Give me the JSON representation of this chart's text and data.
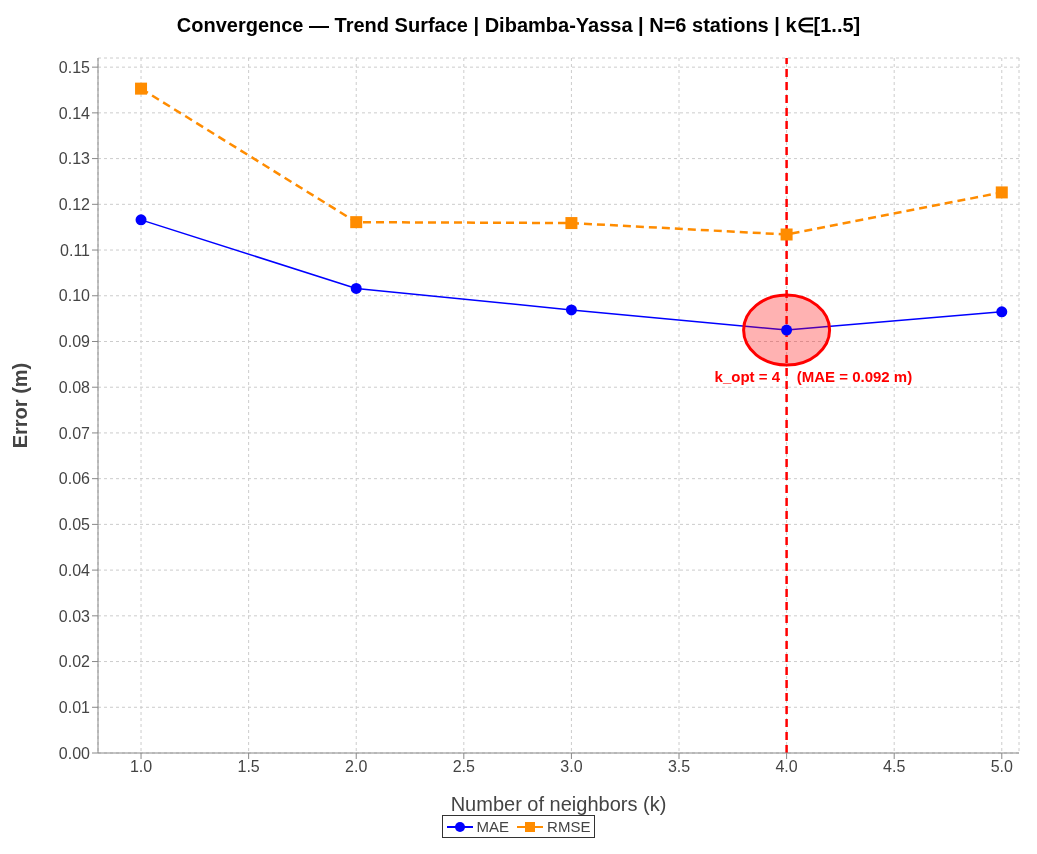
{
  "chart_data": {
    "type": "line",
    "title": "Convergence — Trend Surface | Dibamba-Yassa | N=6 stations | k∈[1..5]",
    "xlabel": "Number of neighbors (k)",
    "ylabel": "Error (m)",
    "x": [
      1,
      2,
      3,
      4,
      5
    ],
    "series": [
      {
        "name": "MAE",
        "color": "#0000ff",
        "values": [
          0.1166,
          0.1016,
          0.0969,
          0.0925,
          0.0965
        ],
        "marker": "circle",
        "line_style": "solid"
      },
      {
        "name": "RMSE",
        "color": "#ff8c00",
        "values": [
          0.1453,
          0.1161,
          0.1159,
          0.1134,
          0.1226
        ],
        "marker": "square",
        "line_style": "dashed"
      }
    ],
    "xlim": [
      0.8,
      5.08
    ],
    "ylim": [
      0,
      0.152
    ],
    "xticks": [
      {
        "value": 1,
        "label": "1.0"
      },
      {
        "value": 1.5,
        "label": "1.5"
      },
      {
        "value": 2,
        "label": "2.0"
      },
      {
        "value": 2.5,
        "label": "2.5"
      },
      {
        "value": 3,
        "label": "3.0"
      },
      {
        "value": 3.5,
        "label": "3.5"
      },
      {
        "value": 4,
        "label": "4.0"
      },
      {
        "value": 4.5,
        "label": "4.5"
      },
      {
        "value": 5,
        "label": "5.0"
      }
    ],
    "yticks": [
      {
        "value": 0,
        "label": "0.00"
      },
      {
        "value": 0.01,
        "label": "0.01"
      },
      {
        "value": 0.02,
        "label": "0.02"
      },
      {
        "value": 0.03,
        "label": "0.03"
      },
      {
        "value": 0.04,
        "label": "0.04"
      },
      {
        "value": 0.05,
        "label": "0.05"
      },
      {
        "value": 0.06,
        "label": "0.06"
      },
      {
        "value": 0.07,
        "label": "0.07"
      },
      {
        "value": 0.08,
        "label": "0.08"
      },
      {
        "value": 0.09,
        "label": "0.09"
      },
      {
        "value": 0.1,
        "label": "0.10"
      },
      {
        "value": 0.11,
        "label": "0.11"
      },
      {
        "value": 0.12,
        "label": "0.12"
      },
      {
        "value": 0.13,
        "label": "0.13"
      },
      {
        "value": 0.14,
        "label": "0.14"
      },
      {
        "value": 0.15,
        "label": "0.15"
      }
    ],
    "ref_lines": [
      {
        "axis": "x",
        "value": 4,
        "color": "#ff0000",
        "line_style": "dashed"
      }
    ],
    "annotations": [
      {
        "text": "k_opt = 4    (MAE = 0.092 m)",
        "x": 4,
        "y": 0.0925
      }
    ],
    "grid": true,
    "legend": "bottom"
  }
}
